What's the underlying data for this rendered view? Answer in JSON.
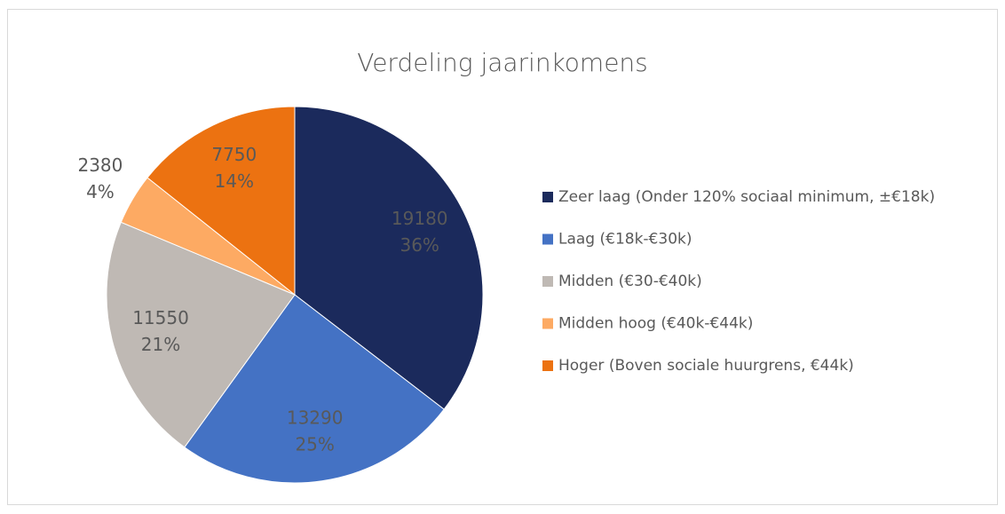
{
  "chart_data": {
    "type": "pie",
    "title": "Verdeling jaarinkomens",
    "categories": [
      "Zeer laag (Onder 120% sociaal minimum, ±€18k)",
      "Laag (€18k-€30k)",
      "Midden (€30-€40k)",
      "Midden hoog (€40k-€44k)",
      "Hoger (Boven sociale huurgrens, €44k)"
    ],
    "values": [
      19180,
      13290,
      11550,
      2380,
      7750
    ],
    "percent_labels": [
      "36%",
      "25%",
      "21%",
      "4%",
      "14%"
    ],
    "colors": [
      "#1b2a5c",
      "#4472c4",
      "#bfb9b4",
      "#fdaa63",
      "#ec7211"
    ],
    "legend": "right"
  }
}
